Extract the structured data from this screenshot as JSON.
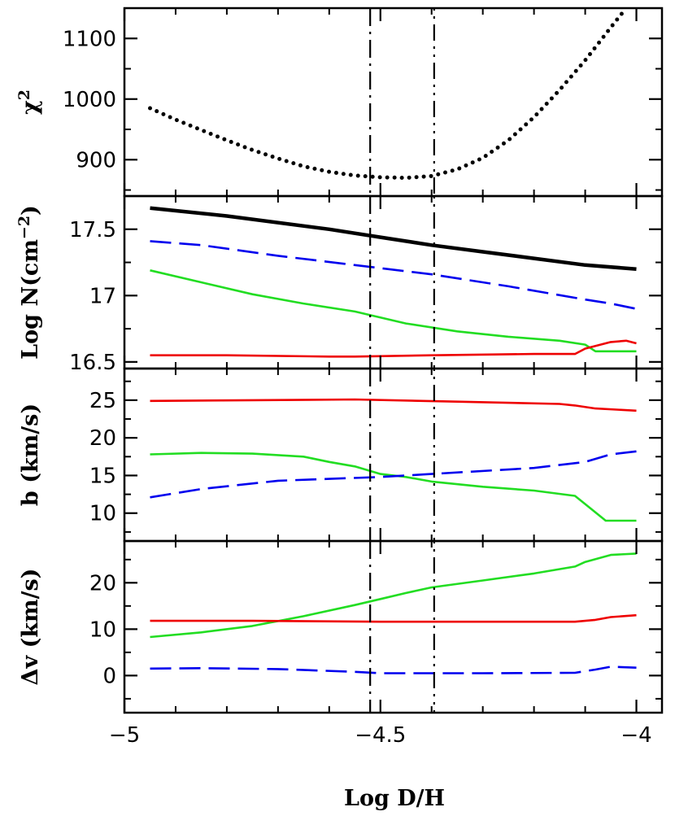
{
  "chart_data": {
    "type": "line",
    "shared_x": {
      "label": "Log D/H",
      "lim": [
        -5.0,
        -3.95
      ],
      "ticks": [
        -5,
        -4.5,
        -4
      ],
      "tick_labels": [
        "−5",
        "−4.5",
        "−4"
      ]
    },
    "vertical_lines": [
      -4.52,
      -4.395
    ],
    "colors": {
      "black": "#000000",
      "blue": "#0000ee",
      "green": "#22dd22",
      "red": "#ee0000"
    },
    "panels": [
      {
        "id": "chi2",
        "ylabel_main": "χ",
        "ylabel_sup": "2",
        "ylim": [
          840,
          1150
        ],
        "yticks": [
          900,
          1000,
          1100
        ],
        "ytick_labels": [
          "900",
          "1000",
          "1100"
        ],
        "series": [
          {
            "color": "black",
            "style": "dotted",
            "x": [
              -4.95,
              -4.9,
              -4.85,
              -4.8,
              -4.75,
              -4.7,
              -4.65,
              -4.6,
              -4.55,
              -4.5,
              -4.45,
              -4.4,
              -4.35,
              -4.3,
              -4.25,
              -4.2,
              -4.15,
              -4.1,
              -4.05,
              -4.02
            ],
            "y": [
              985,
              966,
              949,
              932,
              916,
              902,
              889,
              880,
              874,
              871,
              870,
              873,
              884,
              903,
              932,
              970,
              1015,
              1064,
              1118,
              1150
            ]
          }
        ]
      },
      {
        "id": "logN",
        "ylabel_main": "Log N(cm",
        "ylabel_sup": "−2",
        "ylabel_tail": ")",
        "ylim": [
          16.45,
          17.75
        ],
        "yticks": [
          16.5,
          17,
          17.5
        ],
        "ytick_labels": [
          "16.5",
          "17",
          "17.5"
        ],
        "series": [
          {
            "color": "black",
            "style": "thick",
            "x": [
              -4.95,
              -4.8,
              -4.6,
              -4.5,
              -4.4,
              -4.3,
              -4.2,
              -4.1,
              -4.0
            ],
            "y": [
              17.66,
              17.6,
              17.5,
              17.44,
              17.38,
              17.33,
              17.28,
              17.23,
              17.2
            ]
          },
          {
            "color": "blue",
            "style": "dashed",
            "x": [
              -4.95,
              -4.85,
              -4.7,
              -4.55,
              -4.4,
              -4.25,
              -4.1,
              -4.05,
              -4.0
            ],
            "y": [
              17.41,
              17.38,
              17.3,
              17.23,
              17.16,
              17.07,
              16.97,
              16.94,
              16.9
            ]
          },
          {
            "color": "green",
            "style": "solid",
            "x": [
              -4.95,
              -4.85,
              -4.75,
              -4.65,
              -4.55,
              -4.45,
              -4.35,
              -4.25,
              -4.15,
              -4.1,
              -4.08,
              -4.05,
              -4.0
            ],
            "y": [
              17.19,
              17.1,
              17.01,
              16.94,
              16.88,
              16.79,
              16.73,
              16.69,
              16.66,
              16.63,
              16.58,
              16.58,
              16.58
            ]
          },
          {
            "color": "red",
            "style": "solid",
            "x": [
              -4.95,
              -4.8,
              -4.6,
              -4.55,
              -4.4,
              -4.2,
              -4.12,
              -4.1,
              -4.05,
              -4.02,
              -4.0
            ],
            "y": [
              16.55,
              16.55,
              16.54,
              16.54,
              16.55,
              16.56,
              16.56,
              16.6,
              16.65,
              16.66,
              16.64
            ]
          }
        ]
      },
      {
        "id": "b",
        "ylabel_main": "b (km/s)",
        "ylim": [
          6.3,
          29.2
        ],
        "yticks": [
          10,
          15,
          20,
          25
        ],
        "ytick_labels": [
          "10",
          "15",
          "20",
          "25"
        ],
        "series": [
          {
            "color": "red",
            "style": "solid",
            "x": [
              -4.95,
              -4.75,
              -4.55,
              -4.35,
              -4.15,
              -4.12,
              -4.08,
              -4.0
            ],
            "y": [
              24.9,
              25.0,
              25.1,
              24.8,
              24.5,
              24.3,
              23.9,
              23.6
            ]
          },
          {
            "color": "green",
            "style": "solid",
            "x": [
              -4.95,
              -4.85,
              -4.75,
              -4.65,
              -4.6,
              -4.55,
              -4.5,
              -4.45,
              -4.4,
              -4.3,
              -4.2,
              -4.12,
              -4.1,
              -4.06,
              -4.0
            ],
            "y": [
              17.8,
              18.0,
              17.9,
              17.5,
              16.8,
              16.2,
              15.2,
              14.8,
              14.2,
              13.5,
              13.0,
              12.3,
              11.2,
              9.0,
              9.0
            ]
          },
          {
            "color": "blue",
            "style": "dashed",
            "x": [
              -4.95,
              -4.85,
              -4.7,
              -4.5,
              -4.4,
              -4.2,
              -4.1,
              -4.05,
              -4.0
            ],
            "y": [
              12.1,
              13.2,
              14.3,
              14.8,
              15.2,
              16.0,
              16.8,
              17.8,
              18.2
            ]
          }
        ]
      },
      {
        "id": "dv",
        "ylabel_main": "Δv (km/s)",
        "ylim": [
          -8,
          29
        ],
        "yticks": [
          0,
          10,
          20
        ],
        "ytick_labels": [
          "0",
          "10",
          "20"
        ],
        "series": [
          {
            "color": "green",
            "style": "solid",
            "x": [
              -4.95,
              -4.85,
              -4.75,
              -4.65,
              -4.55,
              -4.5,
              -4.45,
              -4.4,
              -4.3,
              -4.2,
              -4.12,
              -4.1,
              -4.05,
              -4.0
            ],
            "y": [
              8.3,
              9.3,
              10.7,
              12.8,
              15.2,
              16.5,
              17.8,
              19.0,
              20.5,
              22.0,
              23.5,
              24.5,
              26.0,
              26.3
            ]
          },
          {
            "color": "red",
            "style": "solid",
            "x": [
              -4.95,
              -4.75,
              -4.5,
              -4.3,
              -4.12,
              -4.08,
              -4.05,
              -4.0
            ],
            "y": [
              11.8,
              11.8,
              11.6,
              11.6,
              11.6,
              12.0,
              12.6,
              13.0
            ]
          },
          {
            "color": "blue",
            "style": "dashed",
            "x": [
              -4.95,
              -4.85,
              -4.7,
              -4.55,
              -4.5,
              -4.4,
              -4.3,
              -4.12,
              -4.08,
              -4.05,
              -4.0
            ],
            "y": [
              1.5,
              1.6,
              1.4,
              0.8,
              0.5,
              0.5,
              0.5,
              0.6,
              1.3,
              1.9,
              1.7
            ]
          }
        ]
      }
    ]
  }
}
